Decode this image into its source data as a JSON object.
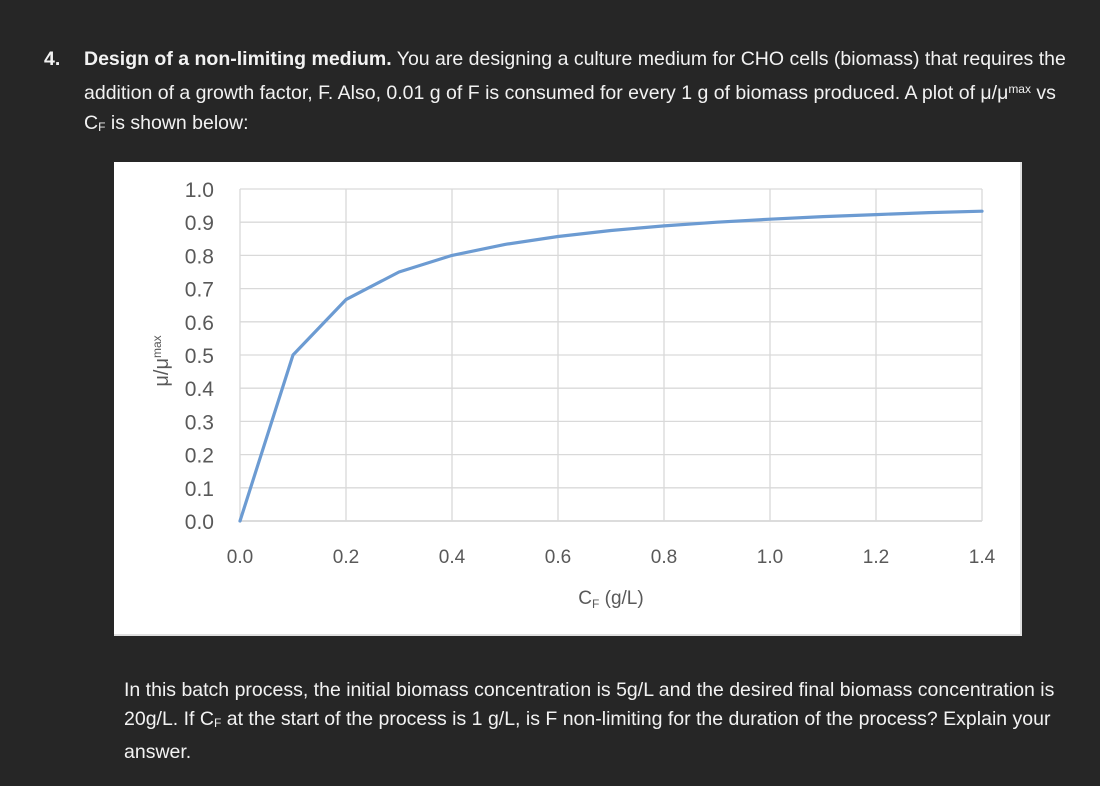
{
  "question": {
    "number": "4.",
    "title": "Design of a non-limiting medium.",
    "intro_part1": " You are designing a culture medium for CHO cells (biomass) that requires the addition of a growth factor, F. Also, 0.01 g of F is consumed for every 1 g of biomass produced. A plot of ",
    "mu": "μ/μ",
    "mu_sup": "max",
    "vs": " vs C",
    "cf_sub": "F",
    "intro_part2": " is shown below:"
  },
  "followup": {
    "part1": "In this batch process, the initial biomass concentration is 5g/L and the desired final biomass concentration is 20g/L. If C",
    "cf_sub": "F",
    "part2": " at the start of the process is 1 g/L, is F non-limiting for the duration of the process? Explain your answer."
  },
  "chart_data": {
    "type": "line",
    "title": "",
    "xlabel": "C_F (g/L)",
    "ylabel": "μ/μmax",
    "x": [
      0.0,
      0.1,
      0.2,
      0.3,
      0.4,
      0.5,
      0.6,
      0.7,
      0.8,
      0.9,
      1.0,
      1.1,
      1.2,
      1.3,
      1.4
    ],
    "series": [
      {
        "name": "μ/μmax",
        "color": "#6c9bd2",
        "values": [
          0.0,
          0.5,
          0.667,
          0.75,
          0.8,
          0.833,
          0.857,
          0.875,
          0.889,
          0.9,
          0.909,
          0.917,
          0.923,
          0.929,
          0.933
        ]
      }
    ],
    "xlim": [
      0.0,
      1.4
    ],
    "ylim": [
      0.0,
      1.0
    ],
    "xticks": [
      "0.0",
      "0.2",
      "0.4",
      "0.6",
      "0.8",
      "1.0",
      "1.2",
      "1.4"
    ],
    "yticks": [
      "0.0",
      "0.1",
      "0.2",
      "0.3",
      "0.4",
      "0.5",
      "0.6",
      "0.7",
      "0.8",
      "0.9",
      "1.0"
    ],
    "grid": true,
    "legend": "none"
  }
}
